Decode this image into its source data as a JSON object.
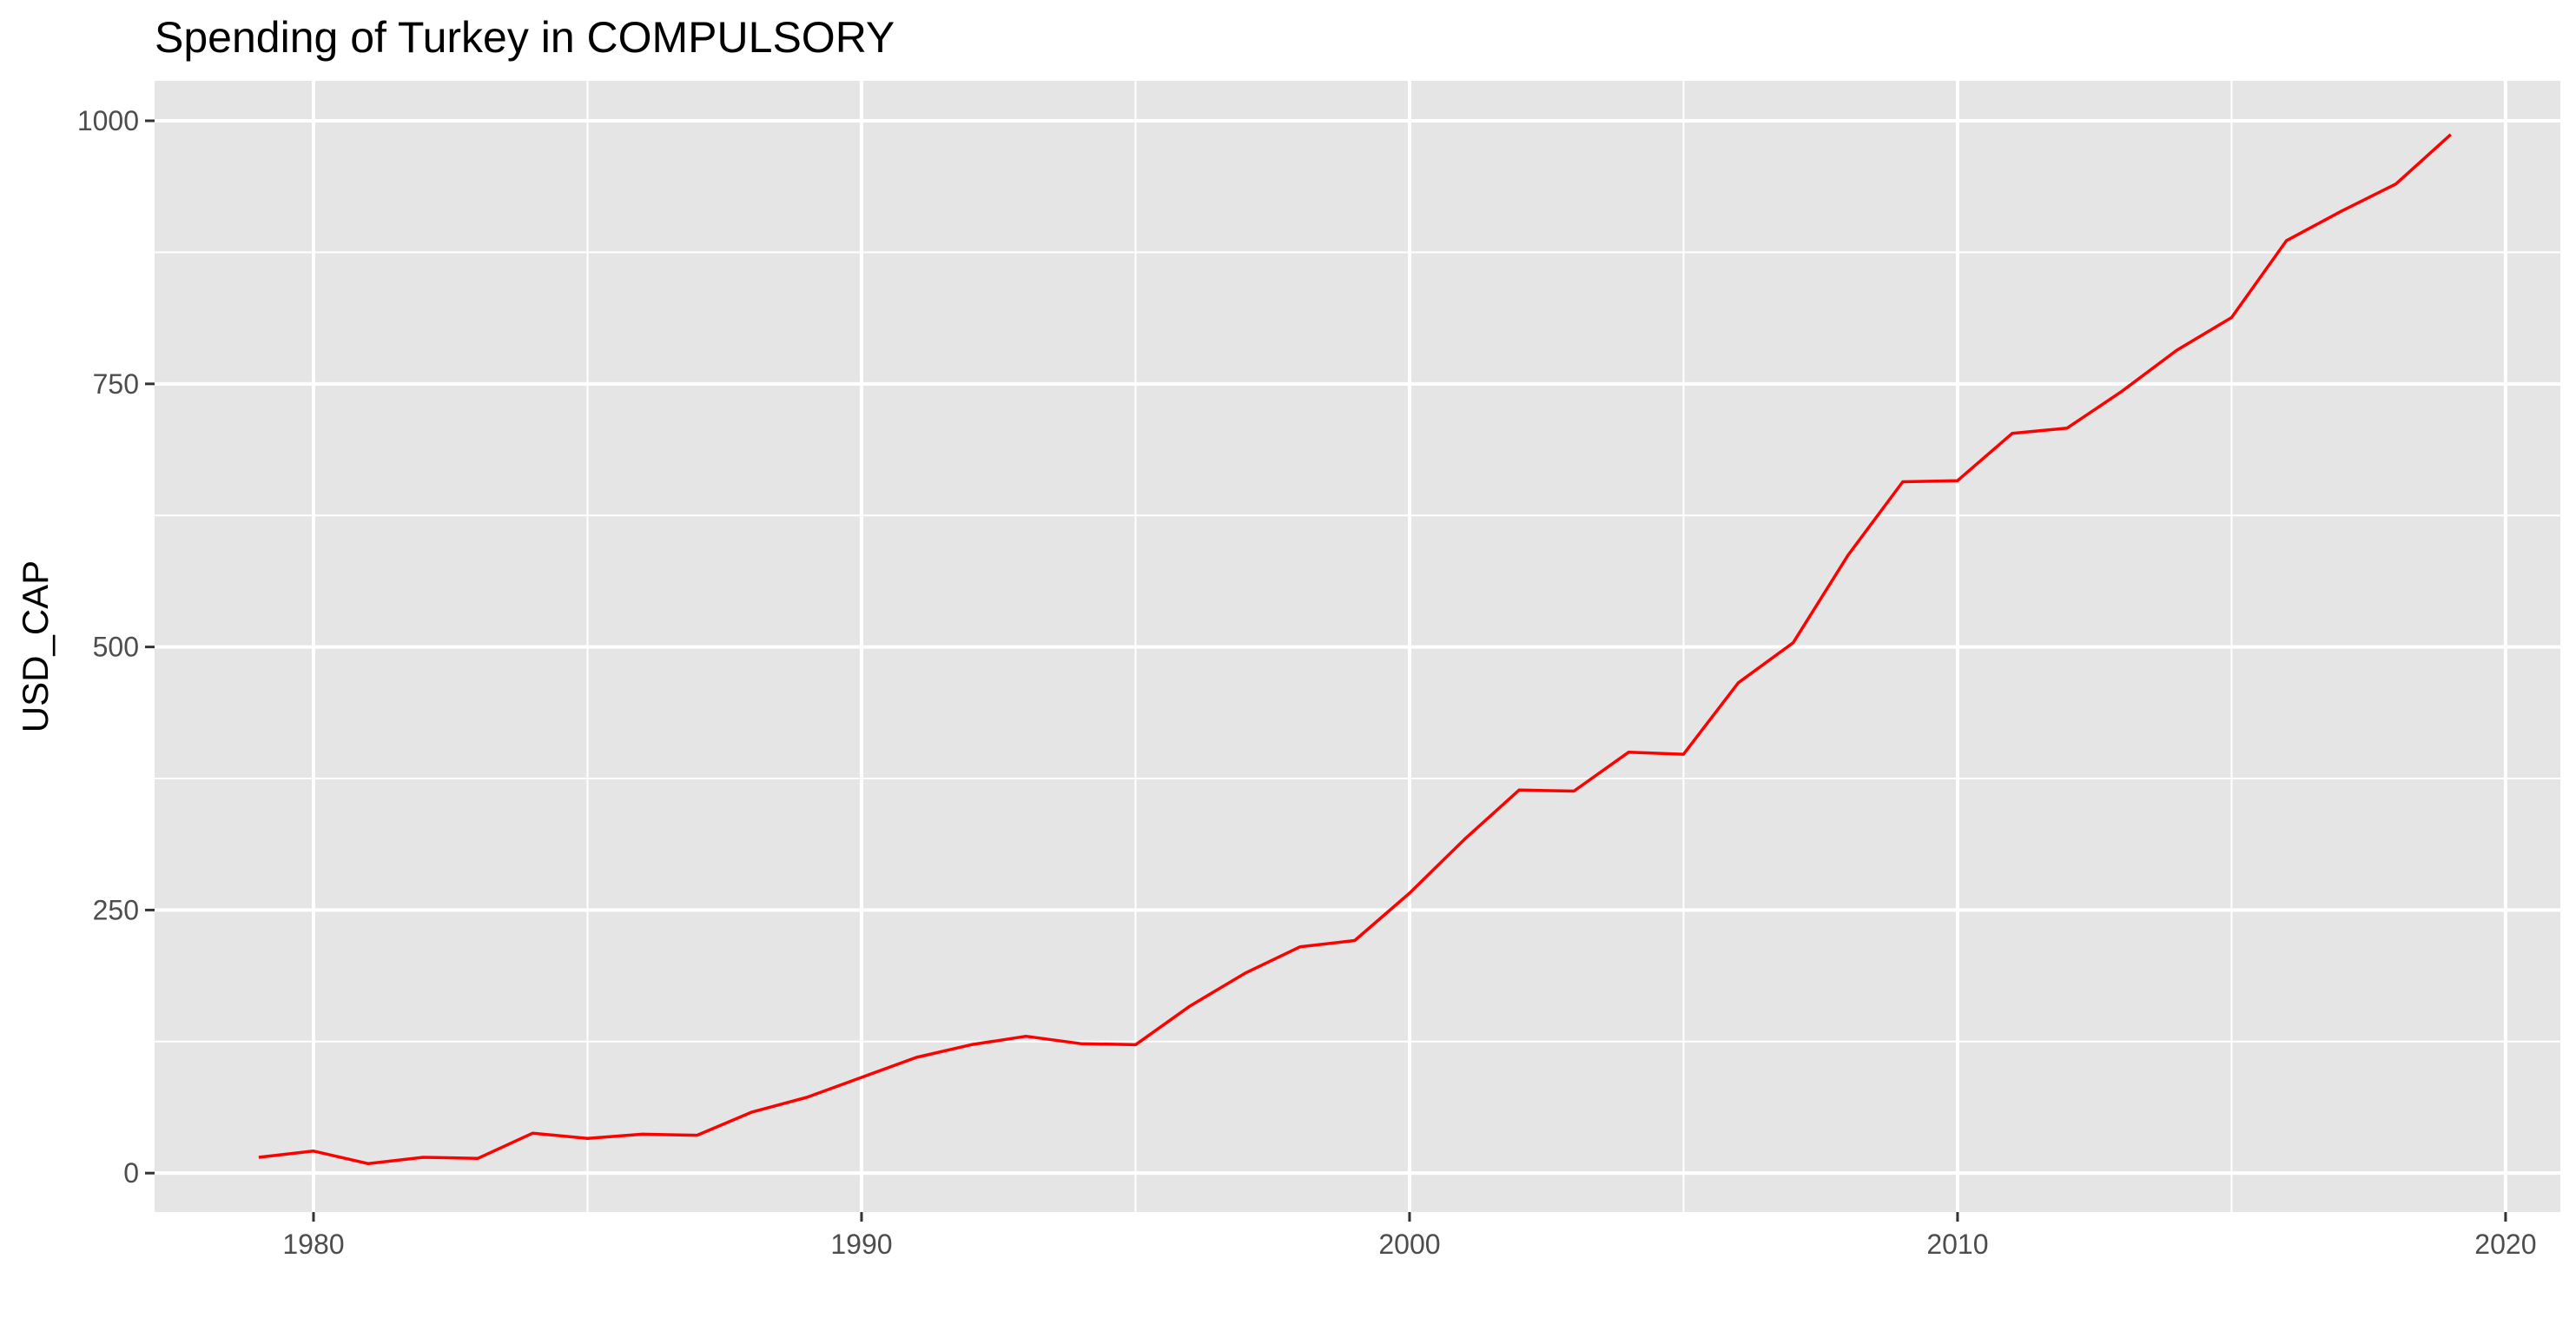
{
  "chart_data": {
    "type": "line",
    "title": "Spending of Turkey in COMPULSORY",
    "xlabel": "",
    "ylabel": "USD_CAP",
    "xlim": [
      1977.1,
      2021.0
    ],
    "ylim": [
      -37,
      1038
    ],
    "x_ticks": [
      1980,
      1990,
      2000,
      2010,
      2020
    ],
    "y_ticks": [
      0,
      250,
      500,
      750,
      1000
    ],
    "x_minor": [
      1985,
      1995,
      2005,
      2015
    ],
    "y_minor": [
      125,
      375,
      625,
      875
    ],
    "grid": true,
    "legend": "none",
    "colors": {
      "panel": "#e5e5e5",
      "grid": "#ffffff",
      "line": "#ff0000",
      "tick": "#333333"
    },
    "series": [
      {
        "x": [
          1979,
          1980,
          1981,
          1982,
          1983,
          1984,
          1985,
          1986,
          1987,
          1988,
          1989,
          1990,
          1991,
          1992,
          1993,
          1994,
          1995,
          1996,
          1997,
          1998,
          1999,
          2000,
          2001,
          2002,
          2003,
          2004,
          2005,
          2006,
          2007,
          2008,
          2009,
          2010,
          2011,
          2012,
          2013,
          2014,
          2015,
          2016,
          2017,
          2018,
          2019
        ],
        "values": [
          15,
          21,
          9,
          15,
          14,
          38,
          33,
          37,
          36,
          58,
          72,
          91,
          110,
          122,
          130,
          123,
          122,
          159,
          190,
          215,
          221,
          266,
          317,
          364,
          363,
          400,
          398,
          466,
          504,
          587,
          657,
          658,
          703,
          708,
          743,
          782,
          813,
          886,
          914,
          940,
          987
        ]
      }
    ]
  }
}
